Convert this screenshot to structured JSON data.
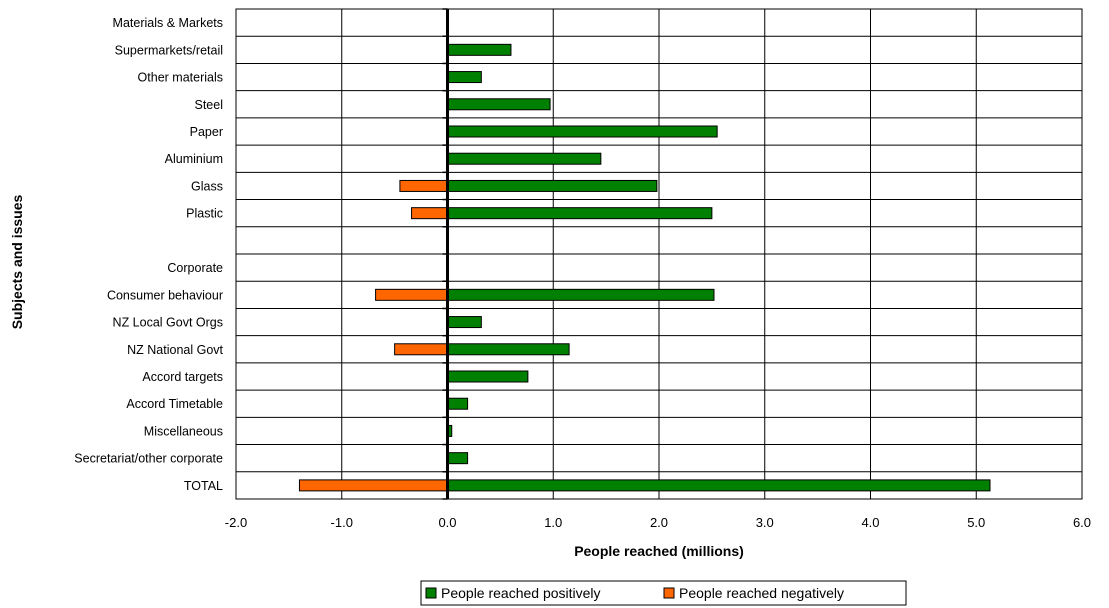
{
  "chart_data": {
    "type": "bar",
    "orientation": "horizontal",
    "xlabel": "People reached (millions)",
    "ylabel": "Subjects and issues",
    "xlim": [
      -2.0,
      6.0
    ],
    "xticks": [
      "-2.0",
      "-1.0",
      "0.0",
      "1.0",
      "2.0",
      "3.0",
      "4.0",
      "5.0",
      "6.0"
    ],
    "grid": true,
    "legend_position": "bottom",
    "categories": [
      "Materials & Markets",
      "Supermarkets/retail",
      "Other materials",
      "Steel",
      "Paper",
      "Aluminium",
      "Glass",
      "Plastic",
      "",
      "Corporate",
      "Consumer behaviour",
      "NZ Local Govt Orgs",
      "NZ National Govt",
      "Accord targets",
      "Accord Timetable",
      "Miscellaneous",
      "Secretariat/other corporate",
      "TOTAL"
    ],
    "series": [
      {
        "name": "People reached positively",
        "color": "#008000",
        "values": [
          0,
          0.6,
          0.32,
          0.97,
          2.55,
          1.45,
          1.98,
          2.5,
          0,
          0,
          2.52,
          0.32,
          1.15,
          0.76,
          0.19,
          0.04,
          0.19,
          5.13
        ]
      },
      {
        "name": "People reached negatively",
        "color": "#ff6600",
        "values": [
          0,
          0,
          0,
          0,
          0,
          0,
          -0.45,
          -0.34,
          0,
          0,
          -0.68,
          0,
          -0.5,
          0,
          0,
          0,
          0,
          -1.4
        ]
      }
    ]
  }
}
